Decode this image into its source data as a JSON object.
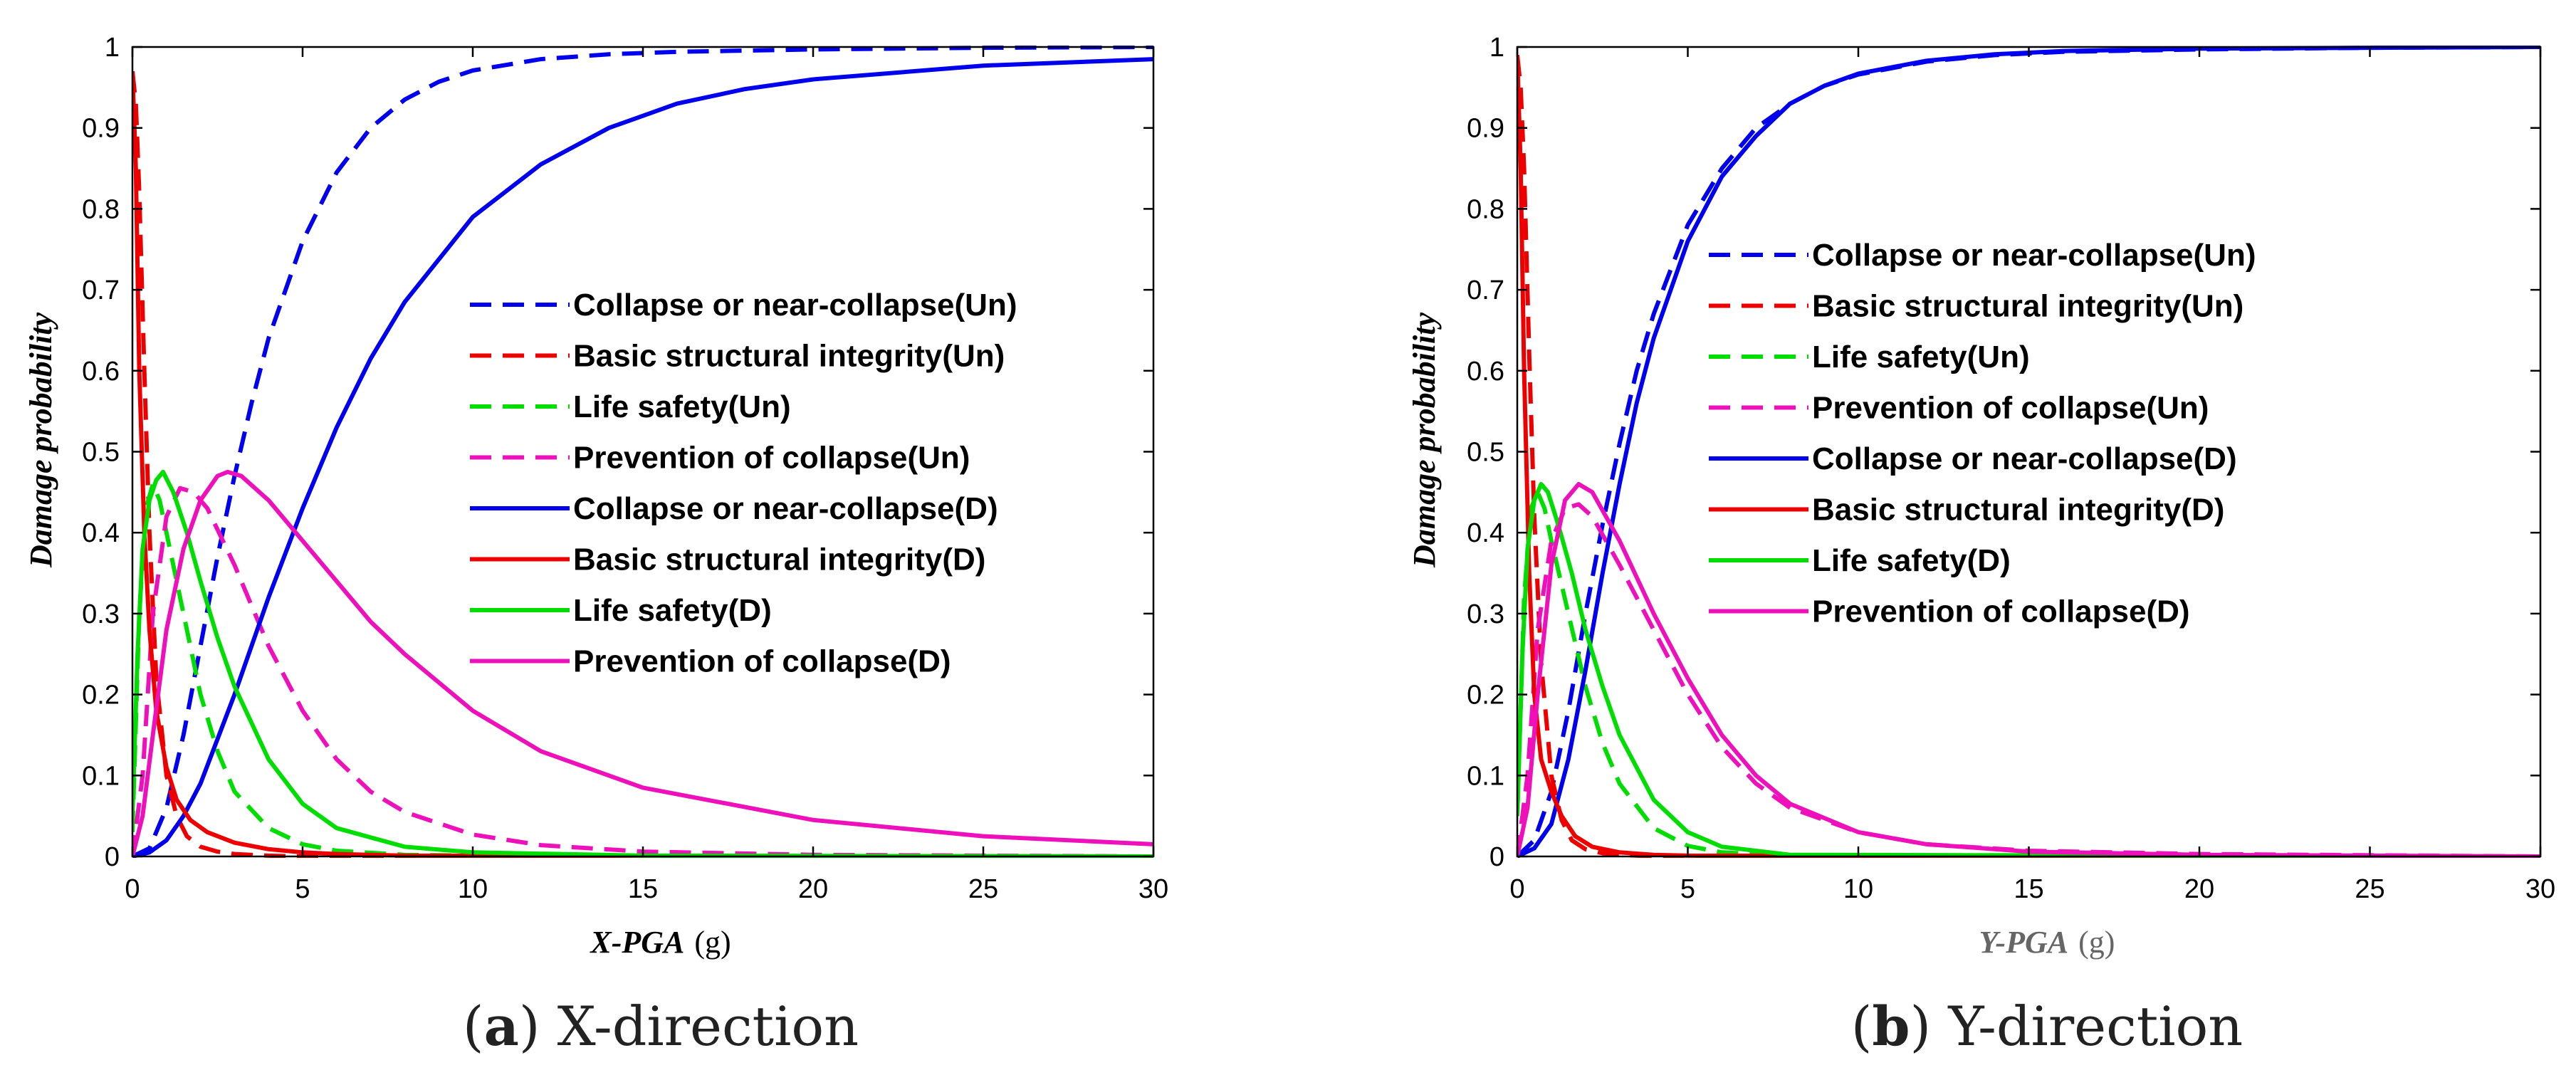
{
  "chart_data": [
    {
      "type": "line",
      "panel_label": "(a)",
      "caption": "X-direction",
      "xlabel": "X-PGA",
      "xunit": "(g)",
      "ylabel": "Damage probability",
      "xlim": [
        0,
        30
      ],
      "ylim": [
        0,
        1
      ],
      "xticks": [
        0,
        5,
        10,
        15,
        20,
        25,
        30
      ],
      "yticks": [
        0,
        0.1,
        0.2,
        0.3,
        0.4,
        0.5,
        0.6,
        0.7,
        0.8,
        0.9,
        1
      ],
      "ytick_labels": [
        "0",
        "0.1",
        "0.2",
        "0.3",
        "0.4",
        "0.5",
        "0.6",
        "0.7",
        "0.8",
        "0.9",
        "1"
      ],
      "legend": "center-right",
      "series": [
        {
          "name": "Collapse or near-collapse(Un)",
          "color": "#0000ee",
          "dash": true,
          "x": [
            0,
            0.5,
            1,
            1.5,
            2,
            2.5,
            3,
            3.5,
            4,
            5,
            6,
            7,
            8,
            9,
            10,
            12,
            14,
            16,
            20,
            25,
            30
          ],
          "y": [
            0,
            0.01,
            0.06,
            0.15,
            0.26,
            0.37,
            0.47,
            0.56,
            0.64,
            0.76,
            0.845,
            0.9,
            0.935,
            0.957,
            0.971,
            0.985,
            0.991,
            0.994,
            0.997,
            0.999,
            1.0
          ]
        },
        {
          "name": "Basic structural integrity(Un)",
          "color": "#ee0000",
          "dash": true,
          "x": [
            0,
            0.1,
            0.2,
            0.35,
            0.5,
            0.7,
            1,
            1.3,
            1.6,
            2,
            2.5,
            3,
            4,
            5,
            30
          ],
          "y": [
            0.97,
            0.93,
            0.82,
            0.6,
            0.4,
            0.22,
            0.1,
            0.05,
            0.025,
            0.012,
            0.006,
            0.003,
            0.001,
            0,
            0
          ]
        },
        {
          "name": "Life safety(Un)",
          "color": "#00dd00",
          "dash": true,
          "x": [
            0,
            0.2,
            0.4,
            0.6,
            0.8,
            1,
            1.5,
            2,
            2.5,
            3,
            4,
            5,
            6,
            8,
            10,
            30
          ],
          "y": [
            0.03,
            0.3,
            0.43,
            0.46,
            0.44,
            0.4,
            0.3,
            0.2,
            0.13,
            0.08,
            0.035,
            0.015,
            0.007,
            0.002,
            0.001,
            0
          ]
        },
        {
          "name": "Prevention of collapse(Un)",
          "color": "#ee11bb",
          "dash": true,
          "x": [
            0,
            0.3,
            0.6,
            1,
            1.4,
            1.8,
            2.2,
            3,
            4,
            5,
            6,
            7,
            8,
            10,
            12,
            15,
            20,
            30
          ],
          "y": [
            0,
            0.1,
            0.3,
            0.42,
            0.455,
            0.45,
            0.43,
            0.36,
            0.26,
            0.18,
            0.12,
            0.08,
            0.055,
            0.027,
            0.014,
            0.006,
            0.002,
            0
          ]
        },
        {
          "name": "Collapse or near-collapse(D)",
          "color": "#0000ee",
          "dash": false,
          "x": [
            0,
            0.5,
            1,
            1.5,
            2,
            3,
            4,
            5,
            6,
            7,
            8,
            10,
            12,
            14,
            16,
            18,
            20,
            25,
            30
          ],
          "y": [
            0,
            0.005,
            0.02,
            0.05,
            0.09,
            0.2,
            0.32,
            0.43,
            0.53,
            0.615,
            0.685,
            0.79,
            0.855,
            0.9,
            0.93,
            0.948,
            0.96,
            0.977,
            0.985
          ]
        },
        {
          "name": "Basic structural integrity(D)",
          "color": "#ee0000",
          "dash": false,
          "x": [
            0,
            0.1,
            0.2,
            0.35,
            0.5,
            0.7,
            1,
            1.3,
            1.7,
            2.2,
            3,
            4,
            5,
            6,
            8,
            30
          ],
          "y": [
            0.97,
            0.85,
            0.6,
            0.4,
            0.28,
            0.18,
            0.11,
            0.07,
            0.045,
            0.03,
            0.017,
            0.009,
            0.005,
            0.003,
            0.001,
            0
          ]
        },
        {
          "name": "Life safety(D)",
          "color": "#00dd00",
          "dash": false,
          "x": [
            0,
            0.15,
            0.3,
            0.5,
            0.7,
            0.9,
            1.2,
            1.6,
            2,
            2.5,
            3,
            4,
            5,
            6,
            8,
            10,
            15,
            30
          ],
          "y": [
            0.05,
            0.25,
            0.38,
            0.44,
            0.465,
            0.475,
            0.45,
            0.4,
            0.34,
            0.27,
            0.21,
            0.12,
            0.065,
            0.035,
            0.012,
            0.005,
            0.001,
            0
          ]
        },
        {
          "name": "Prevention of collapse(D)",
          "color": "#ee11bb",
          "dash": false,
          "x": [
            0,
            0.3,
            0.6,
            1,
            1.5,
            2,
            2.5,
            2.8,
            3.2,
            4,
            5,
            6,
            7,
            8,
            10,
            12,
            15,
            20,
            25,
            30
          ],
          "y": [
            0,
            0.05,
            0.15,
            0.28,
            0.38,
            0.44,
            0.47,
            0.475,
            0.47,
            0.44,
            0.39,
            0.34,
            0.29,
            0.25,
            0.18,
            0.13,
            0.085,
            0.045,
            0.025,
            0.015
          ]
        }
      ]
    },
    {
      "type": "line",
      "panel_label": "(b)",
      "caption": "Y-direction",
      "xlabel": "Y-PGA",
      "xunit": "(g)",
      "ylabel": "Damage probability",
      "xlim": [
        0,
        30
      ],
      "ylim": [
        0,
        1
      ],
      "xticks": [
        0,
        5,
        10,
        15,
        20,
        25,
        30
      ],
      "yticks": [
        0,
        0.1,
        0.2,
        0.3,
        0.4,
        0.5,
        0.6,
        0.7,
        0.8,
        0.9,
        1
      ],
      "ytick_labels": [
        "0",
        "0.1",
        "0.2",
        "0.3",
        "0.4",
        "0.5",
        "0.6",
        "0.7",
        "0.8",
        "0.9",
        "1"
      ],
      "legend": "center-right",
      "series": [
        {
          "name": "Collapse or near-collapse(Un)",
          "color": "#0000ee",
          "dash": true,
          "x": [
            0,
            0.5,
            1,
            1.5,
            2,
            2.5,
            3,
            3.5,
            4,
            5,
            6,
            7,
            8,
            9,
            10,
            12,
            14,
            16,
            20,
            25,
            30
          ],
          "y": [
            0,
            0.02,
            0.08,
            0.18,
            0.3,
            0.41,
            0.51,
            0.6,
            0.67,
            0.78,
            0.85,
            0.9,
            0.93,
            0.952,
            0.966,
            0.982,
            0.99,
            0.994,
            0.997,
            0.999,
            1.0
          ]
        },
        {
          "name": "Basic structural integrity(Un)",
          "color": "#ee0000",
          "dash": true,
          "x": [
            0,
            0.1,
            0.2,
            0.35,
            0.5,
            0.7,
            1,
            1.3,
            1.6,
            2,
            2.5,
            3,
            4,
            30
          ],
          "y": [
            0.99,
            0.95,
            0.85,
            0.62,
            0.42,
            0.24,
            0.1,
            0.045,
            0.02,
            0.009,
            0.004,
            0.002,
            0,
            0
          ]
        },
        {
          "name": "Life safety(Un)",
          "color": "#00dd00",
          "dash": true,
          "x": [
            0,
            0.2,
            0.4,
            0.6,
            0.8,
            1,
            1.5,
            2,
            2.5,
            3,
            4,
            5,
            6,
            8,
            30
          ],
          "y": [
            0.05,
            0.32,
            0.43,
            0.45,
            0.43,
            0.39,
            0.3,
            0.21,
            0.14,
            0.09,
            0.035,
            0.013,
            0.005,
            0.001,
            0
          ]
        },
        {
          "name": "Prevention of collapse(Un)",
          "color": "#ee11bb",
          "dash": true,
          "x": [
            0,
            0.3,
            0.6,
            1,
            1.4,
            1.8,
            2.2,
            3,
            4,
            5,
            6,
            7,
            8,
            10,
            12,
            15,
            20,
            30
          ],
          "y": [
            0,
            0.1,
            0.28,
            0.39,
            0.43,
            0.435,
            0.42,
            0.36,
            0.28,
            0.2,
            0.135,
            0.09,
            0.06,
            0.03,
            0.015,
            0.007,
            0.003,
            0
          ]
        },
        {
          "name": "Collapse or near-collapse(D)",
          "color": "#0000ee",
          "dash": false,
          "x": [
            0,
            0.5,
            1,
            1.5,
            2,
            2.5,
            3,
            3.5,
            4,
            5,
            6,
            7,
            8,
            9,
            10,
            12,
            14,
            16,
            20,
            25,
            30
          ],
          "y": [
            0,
            0.01,
            0.04,
            0.12,
            0.23,
            0.35,
            0.46,
            0.56,
            0.64,
            0.76,
            0.84,
            0.89,
            0.93,
            0.952,
            0.967,
            0.983,
            0.991,
            0.995,
            0.998,
            0.999,
            1.0
          ]
        },
        {
          "name": "Basic structural integrity(D)",
          "color": "#ee0000",
          "dash": false,
          "x": [
            0,
            0.1,
            0.2,
            0.35,
            0.5,
            0.7,
            1,
            1.3,
            1.7,
            2.2,
            3,
            4,
            5,
            30
          ],
          "y": [
            0.99,
            0.85,
            0.6,
            0.35,
            0.2,
            0.12,
            0.08,
            0.05,
            0.025,
            0.012,
            0.005,
            0.002,
            0.001,
            0
          ]
        },
        {
          "name": "Life safety(D)",
          "color": "#00dd00",
          "dash": false,
          "x": [
            0,
            0.15,
            0.3,
            0.5,
            0.7,
            0.9,
            1.2,
            1.6,
            2,
            2.5,
            3,
            4,
            5,
            6,
            8,
            30
          ],
          "y": [
            0.05,
            0.25,
            0.38,
            0.44,
            0.46,
            0.45,
            0.41,
            0.35,
            0.28,
            0.21,
            0.15,
            0.07,
            0.03,
            0.012,
            0.002,
            0
          ]
        },
        {
          "name": "Prevention of collapse(D)",
          "color": "#ee11bb",
          "dash": false,
          "x": [
            0,
            0.3,
            0.6,
            1,
            1.4,
            1.8,
            2.2,
            3,
            4,
            5,
            6,
            7,
            8,
            10,
            12,
            15,
            20,
            30
          ],
          "y": [
            0,
            0.06,
            0.2,
            0.36,
            0.44,
            0.46,
            0.45,
            0.39,
            0.3,
            0.22,
            0.15,
            0.1,
            0.065,
            0.03,
            0.015,
            0.006,
            0.002,
            0
          ]
        }
      ]
    }
  ]
}
